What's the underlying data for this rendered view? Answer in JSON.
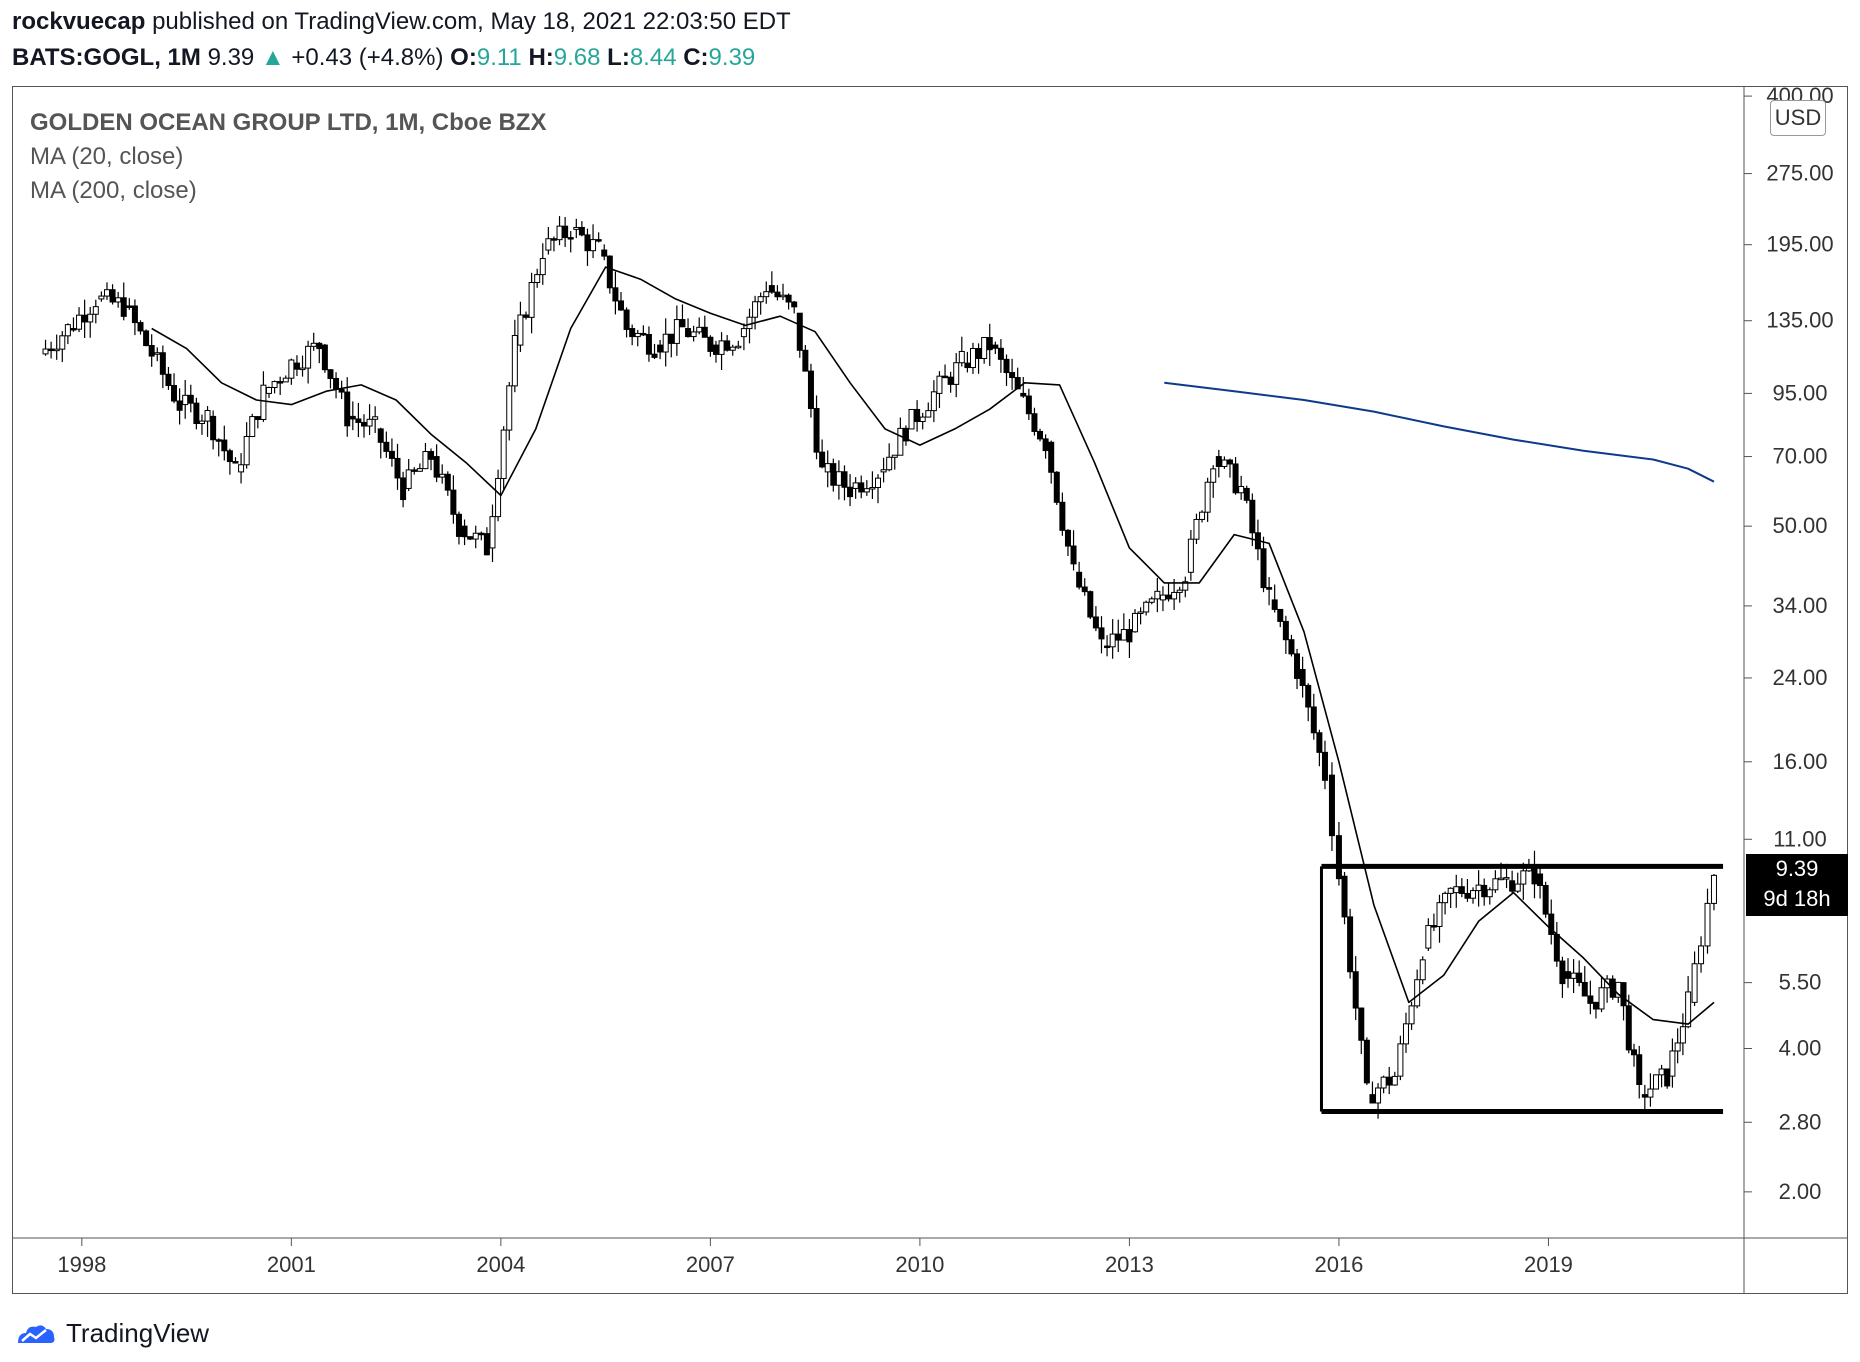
{
  "header": {
    "author": "rockvuecap",
    "published_text": "published on TradingView.com, May 18, 2021 22:03:50 EDT",
    "symbol": "BATS:GOGL, 1M",
    "last": "9.39",
    "change": "+0.43 (+4.8%)",
    "o_label": "O:",
    "o": "9.11",
    "h_label": "H:",
    "h": "9.68",
    "l_label": "L:",
    "l": "8.44",
    "c_label": "C:",
    "c": "9.39"
  },
  "legend": {
    "title": "GOLDEN OCEAN GROUP LTD, 1M, Cboe BZX",
    "ma20": "MA (20, close)",
    "ma200": "MA (200, close)"
  },
  "currency": "USD",
  "price_tag": {
    "price": "9.39",
    "countdown": "9d 18h"
  },
  "footer": {
    "brand": "TradingView"
  },
  "colors": {
    "up": "#26a69a",
    "ma20": "#000000",
    "ma200": "#0d3a8c",
    "candle": "#000000"
  },
  "chart_data": {
    "type": "line",
    "scale": "log",
    "x_ticks": [
      "1998",
      "2001",
      "2004",
      "2007",
      "2010",
      "2013",
      "2016",
      "2019"
    ],
    "y_ticks": [
      "400.00",
      "275.00",
      "195.00",
      "135.00",
      "95.00",
      "70.00",
      "50.00",
      "34.00",
      "24.00",
      "16.00",
      "11.00",
      "5.50",
      "4.00",
      "2.80",
      "2.00"
    ],
    "ylim": [
      1.6,
      420
    ],
    "xlim": [
      1997.0,
      2021.8
    ],
    "series": [
      {
        "name": "",
        "x": [
          1997.4,
          1997.8,
          1998.2,
          1998.6,
          1999.0,
          1999.4,
          1999.8,
          2000.2,
          2000.6,
          2001.0,
          2001.4,
          2001.8,
          2002.2,
          2002.6,
          2003.0,
          2003.4,
          2003.8,
          2004.2,
          2004.6,
          2005.0,
          2005.4,
          2005.8,
          2006.2,
          2006.6,
          2007.0,
          2007.4,
          2007.8,
          2008.2,
          2008.6,
          2009.0,
          2009.4,
          2009.8,
          2010.2,
          2010.6,
          2011.0,
          2011.4,
          2011.8,
          2012.2,
          2012.6,
          2013.0,
          2013.4,
          2013.8,
          2014.2,
          2014.6,
          2015.0,
          2015.4,
          2015.8,
          2016.0,
          2016.4,
          2016.8,
          2017.2,
          2017.6,
          2018.0,
          2018.4,
          2018.8,
          2019.2,
          2019.6,
          2020.0,
          2020.3,
          2020.7,
          2021.0,
          2021.37
        ],
        "values": [
          115,
          130,
          150,
          145,
          115,
          90,
          85,
          65,
          95,
          110,
          120,
          85,
          80,
          60,
          70,
          50,
          45,
          120,
          190,
          210,
          190,
          130,
          120,
          130,
          120,
          125,
          160,
          140,
          65,
          60,
          65,
          80,
          95,
          110,
          120,
          95,
          75,
          40,
          28,
          30,
          35,
          40,
          70,
          60,
          35,
          25,
          15,
          9.2,
          3.2,
          3.5,
          6.5,
          8.5,
          8.8,
          9.0,
          9.3,
          5.8,
          5.0,
          5.5,
          3.2,
          3.5,
          5.0,
          9.39
        ]
      },
      {
        "name": "",
        "x": [
          1999.0,
          1999.5,
          2000.0,
          2000.5,
          2001.0,
          2001.5,
          2002.0,
          2002.5,
          2003.0,
          2003.5,
          2004.0,
          2004.5,
          2005.0,
          2005.5,
          2006.0,
          2006.5,
          2007.0,
          2007.5,
          2008.0,
          2008.5,
          2009.0,
          2009.5,
          2010.0,
          2010.5,
          2011.0,
          2011.5,
          2012.0,
          2012.5,
          2013.0,
          2013.5,
          2014.0,
          2014.5,
          2015.0,
          2015.5,
          2016.0,
          2016.5,
          2017.0,
          2017.5,
          2018.0,
          2018.5,
          2019.0,
          2019.5,
          2020.0,
          2020.5,
          2021.0,
          2021.37
        ],
        "values": [
          130,
          118,
          100,
          92,
          90,
          96,
          99,
          92,
          78,
          68,
          58,
          80,
          130,
          175,
          165,
          150,
          140,
          132,
          138,
          128,
          100,
          80,
          74,
          80,
          88,
          100,
          99,
          68,
          45,
          38,
          38,
          48,
          46,
          30,
          16,
          8,
          5.0,
          5.7,
          7.4,
          8.5,
          7.2,
          6.2,
          5.2,
          4.6,
          4.5,
          5.0
        ]
      },
      {
        "name": "",
        "x": [
          2013.5,
          2014.5,
          2015.5,
          2016.5,
          2017.5,
          2018.5,
          2019.5,
          2020.5,
          2021.0,
          2021.37
        ],
        "values": [
          100,
          96,
          92,
          87,
          81,
          76,
          72,
          69,
          66,
          62
        ]
      }
    ],
    "drawn_lines": [
      {
        "from_x": 2015.75,
        "to_x": 2021.5,
        "y": 9.65
      },
      {
        "from_x": 2015.75,
        "to_x": 2021.5,
        "y": 2.95
      }
    ]
  }
}
